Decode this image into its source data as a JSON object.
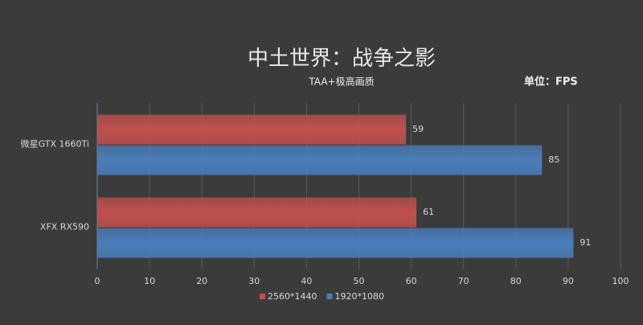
{
  "chart_data": {
    "type": "bar",
    "title": "中土世界：战争之影",
    "subtitle": "TAA+极高画质",
    "unit": "单位：FPS",
    "categories": [
      "微星GTX 1660Ti",
      "XFX RX590"
    ],
    "series": [
      {
        "name": "2560*1440",
        "color": "#c0504d",
        "values": [
          59,
          61
        ]
      },
      {
        "name": "1920*1080",
        "color": "#4a7ebb",
        "values": [
          85,
          91
        ]
      }
    ],
    "xlim": [
      0,
      100
    ],
    "xticks": [
      0,
      10,
      20,
      30,
      40,
      50,
      60,
      70,
      80,
      90,
      100
    ],
    "grid": true
  }
}
